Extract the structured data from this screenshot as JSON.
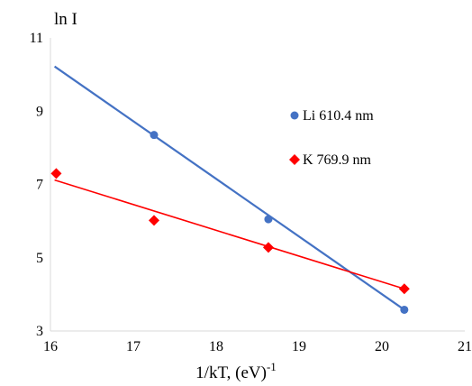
{
  "chart_data": {
    "type": "scatter",
    "xlabel": "1/kT, (eV)",
    "xlabel_sup": "-1",
    "ylabel": "ln I",
    "xlim": [
      16,
      21
    ],
    "ylim": [
      3,
      11
    ],
    "x_ticks": [
      "16",
      "17",
      "18",
      "19",
      "20",
      "21"
    ],
    "y_ticks": [
      "3",
      "5",
      "7",
      "9",
      "11"
    ],
    "grid": false,
    "legend_position": "right",
    "series": [
      {
        "name": "Li 610.4 nm",
        "color": "#4472c4",
        "line_color": "#4472c4",
        "marker": "circle",
        "x": [
          17.25,
          18.63,
          20.27
        ],
        "y": [
          8.35,
          6.05,
          3.58
        ],
        "trendline": {
          "x": [
            16.05,
            20.27
          ],
          "y": [
            10.22,
            3.58
          ]
        }
      },
      {
        "name": "K 769.9 nm",
        "color": "#ff0000",
        "line_color": "#ff0000",
        "marker": "diamond",
        "x": [
          16.07,
          17.25,
          18.63,
          20.27
        ],
        "y": [
          7.3,
          6.02,
          5.28,
          4.15
        ],
        "trendline": {
          "x": [
            16.05,
            20.27
          ],
          "y": [
            7.12,
            4.15
          ]
        }
      }
    ]
  }
}
